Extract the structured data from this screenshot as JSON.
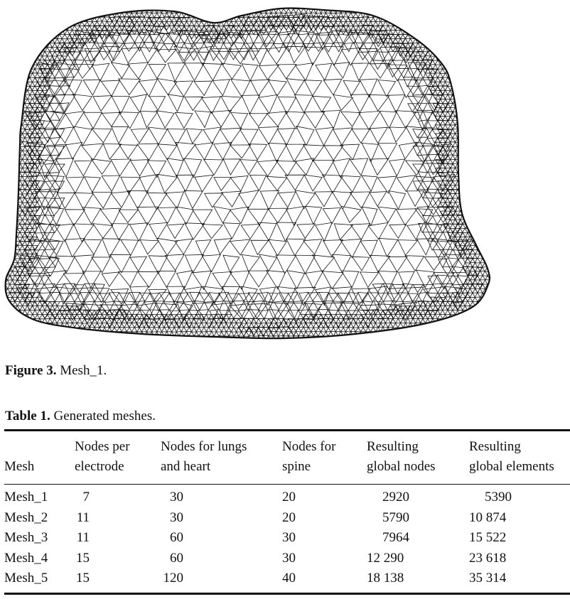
{
  "figure": {
    "label": "Figure 3.",
    "text": "Mesh_1."
  },
  "table": {
    "label": "Table 1.",
    "text": "Generated meshes.",
    "headers": [
      [
        "",
        "Mesh"
      ],
      [
        "Nodes per",
        "electrode"
      ],
      [
        "Nodes for lungs",
        "and heart"
      ],
      [
        "Nodes for",
        "spine"
      ],
      [
        "Resulting",
        "global nodes"
      ],
      [
        "Resulting",
        "global elements"
      ]
    ],
    "rows": [
      [
        "Mesh_1",
        "7",
        "30",
        "20",
        "2920",
        "5390"
      ],
      [
        "Mesh_2",
        "11",
        "30",
        "20",
        "5790",
        "10 874"
      ],
      [
        "Mesh_3",
        "11",
        "60",
        "30",
        "7964",
        "15 522"
      ],
      [
        "Mesh_4",
        "15",
        "60",
        "30",
        "12 290",
        "23 618"
      ],
      [
        "Mesh_5",
        "15",
        "120",
        "40",
        "18 138",
        "35 314"
      ]
    ]
  },
  "colors": {
    "ink": "#111111",
    "background": "#ffffff"
  }
}
